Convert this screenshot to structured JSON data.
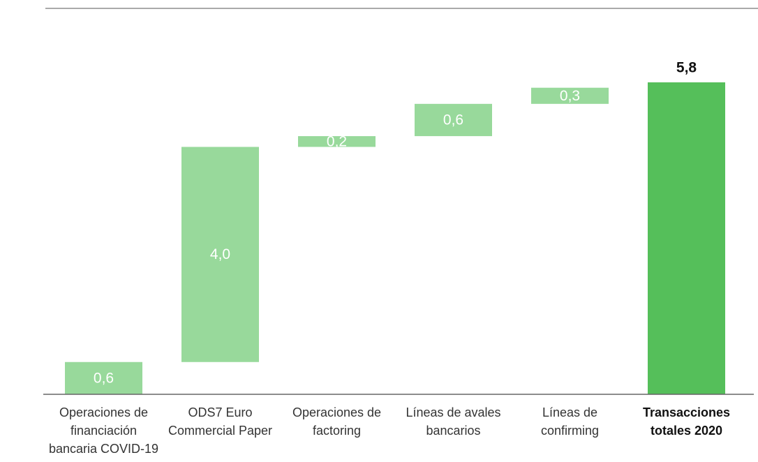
{
  "chart_data": {
    "type": "waterfall",
    "categories": [
      "Operaciones de financiación bancaria COVID-19",
      "ODS7 Euro Commercial Paper",
      "Operaciones de factoring",
      "Líneas de avales bancarios",
      "Líneas de confirming",
      "Transacciones totales 2020"
    ],
    "values": [
      0.6,
      4.0,
      0.2,
      0.6,
      0.3,
      5.8
    ],
    "value_labels": [
      "0,6",
      "4,0",
      "0,2",
      "0,6",
      "0,3",
      "5,8"
    ],
    "measure": [
      "relative",
      "relative",
      "relative",
      "relative",
      "relative",
      "total"
    ],
    "color": "#98d99b",
    "total_color": "#55bf5a"
  }
}
